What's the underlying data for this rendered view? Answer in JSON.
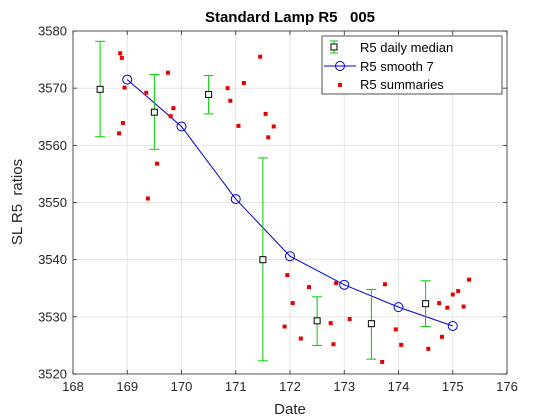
{
  "chart_data": {
    "type": "scatter",
    "title": "Standard Lamp R5   005",
    "xlabel": "Date",
    "ylabel": "SL R5  ratios",
    "xlim": [
      168,
      176
    ],
    "ylim": [
      3520,
      3580
    ],
    "xticks": [
      168,
      169,
      170,
      171,
      172,
      173,
      174,
      175,
      176
    ],
    "yticks": [
      3520,
      3530,
      3540,
      3550,
      3560,
      3570,
      3580
    ],
    "grid": true,
    "legend_position": "top-right",
    "colors": {
      "median": "#00cc00",
      "smooth": "#0000cc",
      "summaries": "#e60000"
    },
    "series": [
      {
        "name": "R5 daily median",
        "kind": "errorbar",
        "points": [
          {
            "x": 168.5,
            "y": 3569.8,
            "lo": 3561.5,
            "hi": 3578.2
          },
          {
            "x": 169.5,
            "y": 3565.8,
            "lo": 3559.3,
            "hi": 3572.4
          },
          {
            "x": 170.5,
            "y": 3568.9,
            "lo": 3565.5,
            "hi": 3572.2
          },
          {
            "x": 171.5,
            "y": 3540.0,
            "lo": 3522.3,
            "hi": 3557.8
          },
          {
            "x": 172.5,
            "y": 3529.3,
            "lo": 3525.0,
            "hi": 3533.5
          },
          {
            "x": 173.5,
            "y": 3528.8,
            "lo": 3522.6,
            "hi": 3534.8
          },
          {
            "x": 174.5,
            "y": 3532.3,
            "lo": 3528.3,
            "hi": 3536.3
          }
        ]
      },
      {
        "name": "R5 smooth 7",
        "kind": "line",
        "points": [
          {
            "x": 169,
            "y": 3571.5
          },
          {
            "x": 170,
            "y": 3563.3
          },
          {
            "x": 171,
            "y": 3550.6
          },
          {
            "x": 172,
            "y": 3540.6
          },
          {
            "x": 173,
            "y": 3535.6
          },
          {
            "x": 174,
            "y": 3531.7
          },
          {
            "x": 175,
            "y": 3528.4
          }
        ]
      },
      {
        "name": "R5 summaries",
        "kind": "points",
        "points": [
          {
            "x": 168.85,
            "y": 3562.1
          },
          {
            "x": 168.87,
            "y": 3576.1
          },
          {
            "x": 168.9,
            "y": 3575.3
          },
          {
            "x": 168.92,
            "y": 3563.9
          },
          {
            "x": 168.95,
            "y": 3570.1
          },
          {
            "x": 169.35,
            "y": 3569.2
          },
          {
            "x": 169.38,
            "y": 3550.7
          },
          {
            "x": 169.55,
            "y": 3556.8
          },
          {
            "x": 169.75,
            "y": 3572.7
          },
          {
            "x": 169.8,
            "y": 3565.1
          },
          {
            "x": 169.85,
            "y": 3566.5
          },
          {
            "x": 170.85,
            "y": 3570.0
          },
          {
            "x": 170.9,
            "y": 3567.8
          },
          {
            "x": 171.05,
            "y": 3563.4
          },
          {
            "x": 171.15,
            "y": 3570.9
          },
          {
            "x": 171.45,
            "y": 3575.5
          },
          {
            "x": 171.55,
            "y": 3565.5
          },
          {
            "x": 171.6,
            "y": 3561.4
          },
          {
            "x": 171.7,
            "y": 3563.3
          },
          {
            "x": 171.9,
            "y": 3528.3
          },
          {
            "x": 171.95,
            "y": 3537.3
          },
          {
            "x": 172.05,
            "y": 3532.4
          },
          {
            "x": 172.2,
            "y": 3526.2
          },
          {
            "x": 172.35,
            "y": 3535.2
          },
          {
            "x": 172.75,
            "y": 3528.9
          },
          {
            "x": 172.8,
            "y": 3525.2
          },
          {
            "x": 172.85,
            "y": 3535.9
          },
          {
            "x": 173.1,
            "y": 3529.6
          },
          {
            "x": 173.7,
            "y": 3522.1
          },
          {
            "x": 173.75,
            "y": 3535.7
          },
          {
            "x": 173.95,
            "y": 3527.8
          },
          {
            "x": 174.05,
            "y": 3525.1
          },
          {
            "x": 174.55,
            "y": 3524.4
          },
          {
            "x": 174.75,
            "y": 3532.4
          },
          {
            "x": 174.8,
            "y": 3526.5
          },
          {
            "x": 174.9,
            "y": 3531.6
          },
          {
            "x": 175.0,
            "y": 3533.9
          },
          {
            "x": 175.1,
            "y": 3534.5
          },
          {
            "x": 175.2,
            "y": 3531.8
          },
          {
            "x": 175.3,
            "y": 3536.5
          }
        ]
      }
    ]
  }
}
